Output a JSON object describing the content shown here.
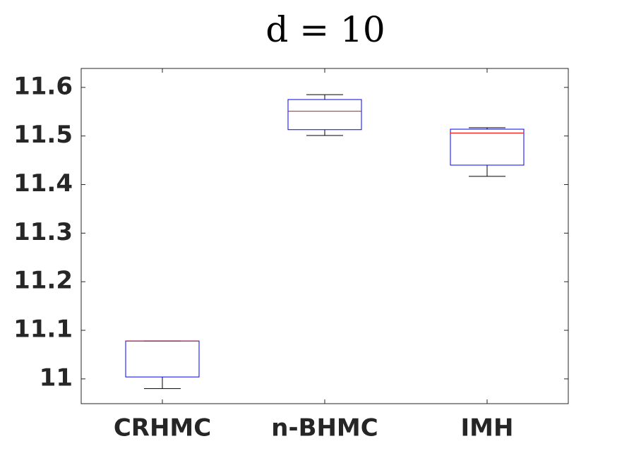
{
  "chart_data": {
    "type": "box",
    "title": "d = 10",
    "categories": [
      "CRHMC",
      "n-BHMC",
      "IMH"
    ],
    "min": [
      10.98,
      11.501,
      11.417
    ],
    "q1": [
      11.004,
      11.513,
      11.44
    ],
    "median": [
      11.078,
      11.551,
      11.506
    ],
    "q3": [
      11.078,
      11.575,
      11.514
    ],
    "max": [
      11.078,
      11.585,
      11.517
    ],
    "box_color": "#0000ff",
    "median_color": "#ff0000",
    "whisker_color": "#000000",
    "ylim": [
      10.949,
      11.639
    ],
    "yticks": [
      11,
      11.1,
      11.2,
      11.3,
      11.4,
      11.5,
      11.6
    ]
  }
}
